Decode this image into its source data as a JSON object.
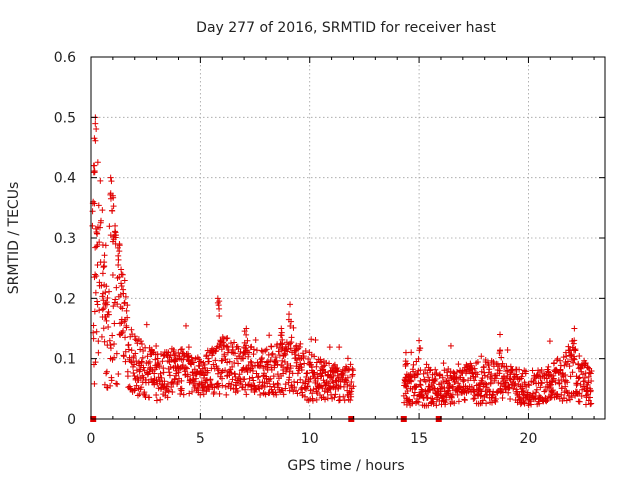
{
  "chart_data": {
    "type": "scatter",
    "title": "Day 277 of 2016, SRMTID for receiver hast",
    "xlabel": "GPS time / hours",
    "ylabel": "SRMTID / TECUs",
    "xlim": [
      0,
      23.5
    ],
    "ylim": [
      0,
      0.6
    ],
    "xticks": [
      0,
      5,
      10,
      15,
      20
    ],
    "xtick_labels": [
      "0",
      "5",
      "10",
      "15",
      "20"
    ],
    "yticks": [
      0,
      0.1,
      0.2,
      0.3,
      0.4,
      0.5,
      0.6
    ],
    "ytick_labels": [
      "0",
      "0.1",
      "0.2",
      "0.3",
      "0.4",
      "0.5",
      "0.6"
    ],
    "grid": true,
    "marker": "+",
    "color": "#e00000",
    "segments": [
      {
        "x_start": 0.1,
        "x_end": 12.0
      },
      {
        "x_start": 14.3,
        "x_end": 22.9
      }
    ],
    "envelope": [
      {
        "x": 0.1,
        "y": 0.1,
        "spread": 0.06
      },
      {
        "x": 0.3,
        "y": 0.3,
        "spread": 0.2
      },
      {
        "x": 0.6,
        "y": 0.17,
        "spread": 0.12
      },
      {
        "x": 1.0,
        "y": 0.2,
        "spread": 0.15
      },
      {
        "x": 1.5,
        "y": 0.14,
        "spread": 0.08
      },
      {
        "x": 2.0,
        "y": 0.09,
        "spread": 0.05
      },
      {
        "x": 3.0,
        "y": 0.07,
        "spread": 0.04
      },
      {
        "x": 4.0,
        "y": 0.08,
        "spread": 0.04
      },
      {
        "x": 5.0,
        "y": 0.07,
        "spread": 0.03
      },
      {
        "x": 6.0,
        "y": 0.09,
        "spread": 0.05
      },
      {
        "x": 7.0,
        "y": 0.08,
        "spread": 0.04
      },
      {
        "x": 8.0,
        "y": 0.08,
        "spread": 0.04
      },
      {
        "x": 9.2,
        "y": 0.09,
        "spread": 0.05
      },
      {
        "x": 10.0,
        "y": 0.07,
        "spread": 0.04
      },
      {
        "x": 11.0,
        "y": 0.06,
        "spread": 0.03
      },
      {
        "x": 12.0,
        "y": 0.06,
        "spread": 0.03
      },
      {
        "x": 14.3,
        "y": 0.05,
        "spread": 0.03
      },
      {
        "x": 15.0,
        "y": 0.06,
        "spread": 0.04
      },
      {
        "x": 16.0,
        "y": 0.05,
        "spread": 0.03
      },
      {
        "x": 17.0,
        "y": 0.06,
        "spread": 0.03
      },
      {
        "x": 18.0,
        "y": 0.06,
        "spread": 0.04
      },
      {
        "x": 19.0,
        "y": 0.06,
        "spread": 0.03
      },
      {
        "x": 20.0,
        "y": 0.05,
        "spread": 0.03
      },
      {
        "x": 21.0,
        "y": 0.06,
        "spread": 0.03
      },
      {
        "x": 22.0,
        "y": 0.08,
        "spread": 0.05
      },
      {
        "x": 22.9,
        "y": 0.05,
        "spread": 0.03
      }
    ],
    "peaks": [
      {
        "x": 0.2,
        "y": 0.5
      },
      {
        "x": 0.15,
        "y": 0.42
      },
      {
        "x": 0.1,
        "y": 0.36
      },
      {
        "x": 0.25,
        "y": 0.31
      },
      {
        "x": 0.6,
        "y": 0.26
      },
      {
        "x": 0.7,
        "y": 0.22
      },
      {
        "x": 0.9,
        "y": 0.4
      },
      {
        "x": 1.0,
        "y": 0.37
      },
      {
        "x": 1.1,
        "y": 0.32
      },
      {
        "x": 1.3,
        "y": 0.29
      },
      {
        "x": 1.4,
        "y": 0.24
      },
      {
        "x": 5.8,
        "y": 0.2
      },
      {
        "x": 9.1,
        "y": 0.19
      },
      {
        "x": 8.7,
        "y": 0.15
      },
      {
        "x": 7.1,
        "y": 0.15
      },
      {
        "x": 18.7,
        "y": 0.14
      },
      {
        "x": 22.1,
        "y": 0.15
      },
      {
        "x": 15.0,
        "y": 0.13
      },
      {
        "x": 14.4,
        "y": 0.11
      }
    ],
    "baseline_flags_x": [
      0.1,
      11.9,
      14.3,
      15.9
    ]
  }
}
